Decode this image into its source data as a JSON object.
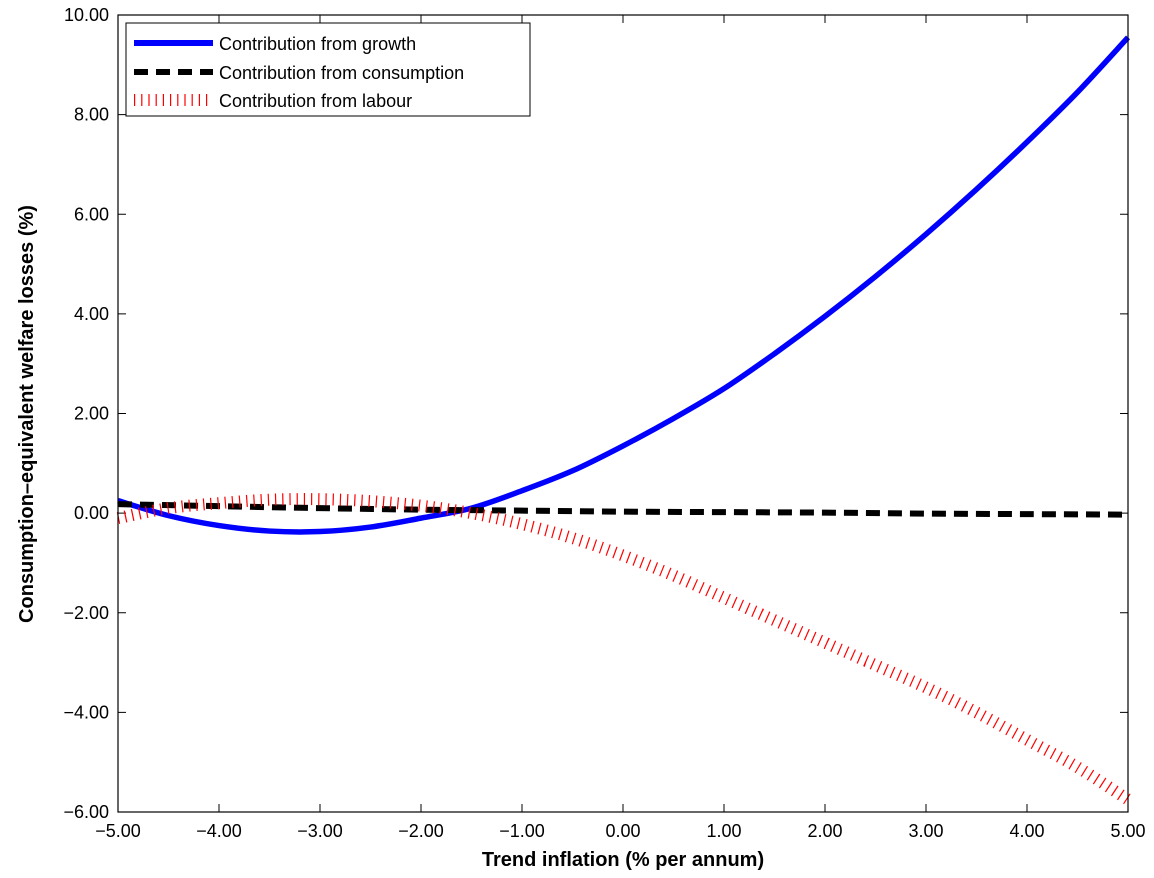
{
  "chart_data": {
    "type": "line",
    "title": "",
    "xlabel": "Trend inflation (% per annum)",
    "ylabel": "Consumption–equivalent welfare losses (%)",
    "xlim": [
      -5,
      5
    ],
    "ylim": [
      -6,
      10
    ],
    "x_ticks": [
      "−5.00",
      "−4.00",
      "−3.00",
      "−2.00",
      "−1.00",
      "0.00",
      "1.00",
      "2.00",
      "3.00",
      "4.00",
      "5.00"
    ],
    "y_ticks": [
      "−6.00",
      "−4.00",
      "−2.00",
      "0.00",
      "2.00",
      "4.00",
      "6.00",
      "8.00",
      "10.00"
    ],
    "grid": false,
    "legend_position": "top-left",
    "series": [
      {
        "name": "Contribution from growth",
        "style": "solid",
        "color": "#0000ff",
        "x": [
          -5,
          -4.5,
          -4,
          -3.5,
          -3,
          -2.5,
          -2,
          -1.5,
          -1,
          -0.5,
          0,
          0.5,
          1,
          1.5,
          2,
          2.5,
          3,
          3.5,
          4,
          4.5,
          5
        ],
        "y": [
          0.25,
          -0.05,
          -0.25,
          -0.36,
          -0.37,
          -0.28,
          -0.1,
          0.1,
          0.45,
          0.85,
          1.35,
          1.9,
          2.5,
          3.2,
          3.95,
          4.75,
          5.6,
          6.5,
          7.45,
          8.45,
          9.55
        ]
      },
      {
        "name": "Contribution from consumption",
        "style": "dashed",
        "color": "#000000",
        "x": [
          -5,
          -4,
          -3,
          -2,
          -1,
          0,
          1,
          2,
          3,
          4,
          5
        ],
        "y": [
          0.18,
          0.14,
          0.1,
          0.07,
          0.05,
          0.03,
          0.02,
          0.01,
          -0.01,
          -0.02,
          -0.03
        ]
      },
      {
        "name": "Contribution from labour",
        "style": "dotted",
        "color": "#ff0000",
        "x": [
          -5,
          -4.5,
          -4,
          -3.5,
          -3,
          -2.5,
          -2,
          -1.5,
          -1,
          -0.5,
          0,
          0.5,
          1,
          1.5,
          2,
          2.5,
          3,
          3.5,
          4,
          4.5,
          5
        ],
        "y": [
          -0.1,
          0.1,
          0.2,
          0.27,
          0.28,
          0.24,
          0.15,
          0.0,
          -0.22,
          -0.5,
          -0.85,
          -1.25,
          -1.7,
          -2.15,
          -2.6,
          -3.05,
          -3.5,
          -4.0,
          -4.55,
          -5.1,
          -5.75
        ]
      }
    ]
  }
}
